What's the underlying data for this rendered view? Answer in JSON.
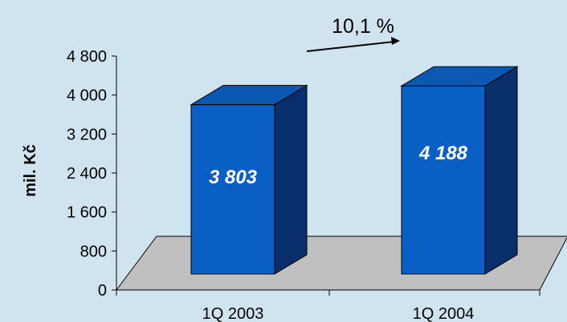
{
  "chart_data": {
    "type": "bar",
    "categories": [
      "1Q 2003",
      "1Q 2004"
    ],
    "values": [
      3803,
      4188
    ],
    "value_labels": [
      "3 803",
      "4 188"
    ],
    "ylabel": "mil. Kč",
    "ylim": [
      0,
      4800
    ],
    "yticks": [
      0,
      800,
      1600,
      2400,
      3200,
      4000,
      4800
    ],
    "ytick_labels": [
      "0",
      "800",
      "1 600",
      "2 400",
      "3 200",
      "4 000",
      "4 800"
    ],
    "annotation": "10,1 %",
    "grid": false,
    "legend": "none",
    "three_d": true
  },
  "colors": {
    "background": "#cfe4ef",
    "bar_front": "#0a5fc4",
    "bar_top": "#0b58b2",
    "bar_side": "#082f6c",
    "floor": "#c0c0c0",
    "axis": "#000000",
    "value_label": "#ffffff"
  }
}
